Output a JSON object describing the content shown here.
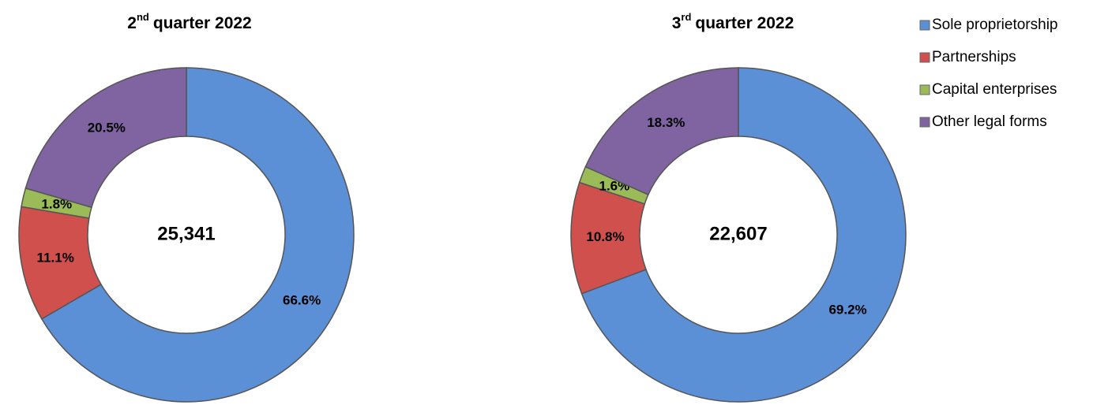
{
  "chart_data": [
    {
      "type": "donut",
      "title": [
        "2",
        "nd",
        "quarter 2022"
      ],
      "center_label": "25,341",
      "labels": [
        "Sole proprietorship",
        "Partnerships",
        "Capital enterprises",
        "Other legal forms"
      ],
      "colors": [
        "#5b8fd6",
        "#d0504d",
        "#9bbb59",
        "#8064a2"
      ],
      "values": [
        66.6,
        11.1,
        1.8,
        20.5
      ],
      "value_labels": [
        "66.6%",
        "11.1%",
        "1.8%",
        "20.5%"
      ],
      "legend": "right"
    },
    {
      "type": "donut",
      "title": [
        "3",
        "rd",
        "quarter 2022"
      ],
      "center_label": "22,607",
      "labels": [
        "Sole proprietorship",
        "Partnerships",
        "Capital enterprises",
        "Other legal forms"
      ],
      "colors": [
        "#5b8fd6",
        "#d0504d",
        "#9bbb59",
        "#8064a2"
      ],
      "values": [
        69.2,
        10.8,
        1.6,
        18.3
      ],
      "value_labels": [
        "69.2%",
        "10.8%",
        "1.6%",
        "18.3%"
      ]
    }
  ]
}
